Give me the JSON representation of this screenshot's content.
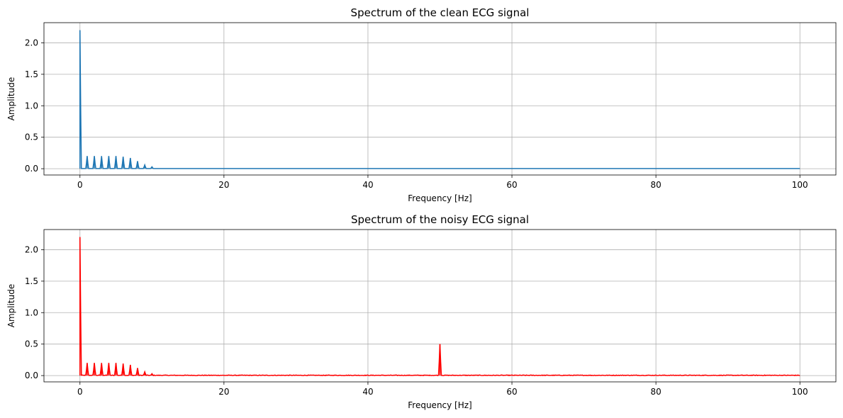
{
  "chart_data": [
    {
      "type": "line",
      "title": "Spectrum of the clean ECG signal",
      "xlabel": "Frequency [Hz]",
      "ylabel": "Amplitude",
      "xlim": [
        -5,
        105
      ],
      "ylim": [
        -0.1,
        2.32
      ],
      "xticks": [
        0,
        20,
        40,
        60,
        80,
        100
      ],
      "yticks": [
        0.0,
        0.5,
        1.0,
        1.5,
        2.0
      ],
      "xtick_labels": [
        "0",
        "20",
        "40",
        "60",
        "80",
        "100"
      ],
      "ytick_labels": [
        "0.0",
        "0.5",
        "1.0",
        "1.5",
        "2.0"
      ],
      "grid": true,
      "color": "#1f77b4",
      "series": [
        {
          "x": [
            0,
            1,
            2,
            3,
            4,
            5,
            6,
            7,
            8,
            9,
            10,
            100
          ],
          "y": [
            2.2,
            0.2,
            0.2,
            0.2,
            0.2,
            0.2,
            0.19,
            0.17,
            0.12,
            0.06,
            0.03,
            0.0
          ]
        }
      ]
    },
    {
      "type": "line",
      "title": "Spectrum of the noisy ECG signal",
      "xlabel": "Frequency [Hz]",
      "ylabel": "Amplitude",
      "xlim": [
        -5,
        105
      ],
      "ylim": [
        -0.1,
        2.32
      ],
      "xticks": [
        0,
        20,
        40,
        60,
        80,
        100
      ],
      "yticks": [
        0.0,
        0.5,
        1.0,
        1.5,
        2.0
      ],
      "xtick_labels": [
        "0",
        "20",
        "40",
        "60",
        "80",
        "100"
      ],
      "ytick_labels": [
        "0.0",
        "0.5",
        "1.0",
        "1.5",
        "2.0"
      ],
      "grid": true,
      "color": "#ff0000",
      "series": [
        {
          "x": [
            0,
            1,
            2,
            3,
            4,
            5,
            6,
            7,
            8,
            9,
            10,
            50,
            100
          ],
          "y": [
            2.2,
            0.2,
            0.2,
            0.2,
            0.2,
            0.2,
            0.19,
            0.17,
            0.12,
            0.06,
            0.03,
            0.5,
            0.01
          ]
        }
      ]
    }
  ]
}
